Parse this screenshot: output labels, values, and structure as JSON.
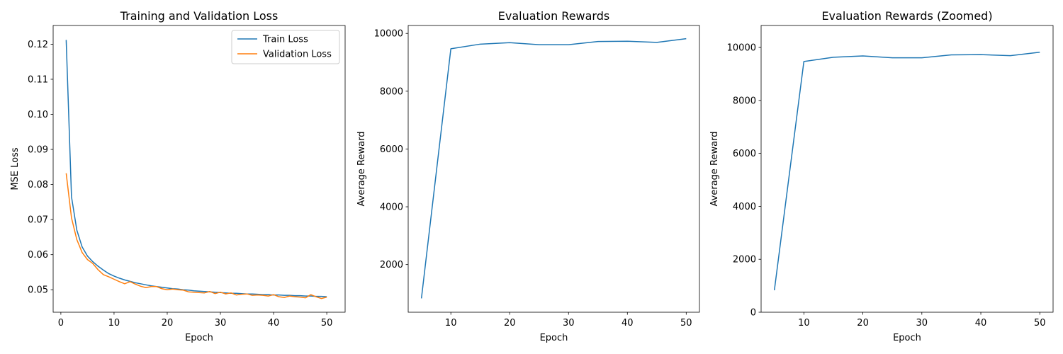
{
  "chart_data": [
    {
      "type": "line",
      "title": "Training and Validation Loss",
      "xlabel": "Epoch",
      "ylabel": "MSE Loss",
      "xlim": [
        -1.45,
        53.45
      ],
      "ylim": [
        0.04359,
        0.12533
      ],
      "xticks": [
        0,
        10,
        20,
        30,
        40,
        50
      ],
      "yticks": [
        0.05,
        0.06,
        0.07,
        0.08,
        0.09,
        0.1,
        0.11,
        0.12
      ],
      "ytick_labels": [
        "0.05",
        "0.06",
        "0.07",
        "0.08",
        "0.09",
        "0.10",
        "0.11",
        "0.12"
      ],
      "grid": false,
      "legend": "top-right",
      "series": [
        {
          "name": "Train Loss",
          "color": "#1f77b4",
          "x": [
            1,
            2,
            3,
            4,
            5,
            6,
            7,
            8,
            9,
            10,
            11,
            12,
            13,
            14,
            15,
            16,
            17,
            18,
            19,
            20,
            21,
            22,
            23,
            24,
            25,
            26,
            27,
            28,
            29,
            30,
            31,
            32,
            33,
            34,
            35,
            36,
            37,
            38,
            39,
            40,
            41,
            42,
            43,
            44,
            45,
            46,
            47,
            48,
            49,
            50
          ],
          "values": [
            0.1212,
            0.0765,
            0.067,
            0.0622,
            0.0596,
            0.058,
            0.0567,
            0.0556,
            0.0546,
            0.0539,
            0.0533,
            0.0528,
            0.0524,
            0.052,
            0.0517,
            0.0514,
            0.0511,
            0.0509,
            0.0507,
            0.0505,
            0.0503,
            0.0502,
            0.05,
            0.0499,
            0.0497,
            0.0496,
            0.0495,
            0.0494,
            0.0493,
            0.0492,
            0.0491,
            0.049,
            0.049,
            0.0489,
            0.0488,
            0.0488,
            0.0487,
            0.0486,
            0.0486,
            0.0485,
            0.0485,
            0.0484,
            0.0484,
            0.0483,
            0.0483,
            0.0482,
            0.0482,
            0.0481,
            0.0481,
            0.048
          ]
        },
        {
          "name": "Validation Loss",
          "color": "#ff7f0e",
          "x": [
            1,
            2,
            3,
            4,
            5,
            6,
            7,
            8,
            9,
            10,
            11,
            12,
            13,
            14,
            15,
            16,
            17,
            18,
            19,
            20,
            21,
            22,
            23,
            24,
            25,
            26,
            27,
            28,
            29,
            30,
            31,
            32,
            33,
            34,
            35,
            36,
            37,
            38,
            39,
            40,
            41,
            42,
            43,
            44,
            45,
            46,
            47,
            48,
            49,
            50
          ],
          "values": [
            0.0832,
            0.0705,
            0.0643,
            0.0606,
            0.0586,
            0.0575,
            0.0557,
            0.0543,
            0.0537,
            0.053,
            0.0523,
            0.0517,
            0.0523,
            0.0516,
            0.051,
            0.0506,
            0.0509,
            0.0509,
            0.0503,
            0.05,
            0.0502,
            0.05,
            0.0499,
            0.0494,
            0.0493,
            0.0492,
            0.0491,
            0.0495,
            0.0489,
            0.0493,
            0.0488,
            0.0491,
            0.0485,
            0.0487,
            0.0488,
            0.0484,
            0.0485,
            0.0484,
            0.0482,
            0.0486,
            0.048,
            0.0478,
            0.0482,
            0.048,
            0.0479,
            0.0477,
            0.0486,
            0.048,
            0.0475,
            0.0479
          ]
        }
      ]
    },
    {
      "type": "line",
      "title": "Evaluation Rewards",
      "xlabel": "Epoch",
      "ylabel": "Average Reward",
      "xlim": [
        2.75,
        52.25
      ],
      "ylim": [
        350,
        10275
      ],
      "xticks": [
        10,
        20,
        30,
        40,
        50
      ],
      "yticks": [
        2000,
        4000,
        6000,
        8000,
        10000
      ],
      "ytick_labels": [
        "2000",
        "4000",
        "6000",
        "8000",
        "10000"
      ],
      "grid": false,
      "series": [
        {
          "color": "#1f77b4",
          "x": [
            5,
            10,
            15,
            20,
            25,
            30,
            35,
            40,
            45,
            50
          ],
          "values": [
            830,
            9470,
            9630,
            9680,
            9610,
            9610,
            9720,
            9730,
            9690,
            9820
          ]
        }
      ]
    },
    {
      "type": "line",
      "title": "Evaluation Rewards (Zoomed)",
      "xlabel": "Epoch",
      "ylabel": "Average Reward",
      "xlim": [
        2.75,
        52.25
      ],
      "ylim": [
        0,
        10830
      ],
      "xticks": [
        10,
        20,
        30,
        40,
        50
      ],
      "yticks": [
        0,
        2000,
        4000,
        6000,
        8000,
        10000
      ],
      "ytick_labels": [
        "0",
        "2000",
        "4000",
        "6000",
        "8000",
        "10000"
      ],
      "grid": false,
      "series": [
        {
          "color": "#1f77b4",
          "x": [
            5,
            10,
            15,
            20,
            25,
            30,
            35,
            40,
            45,
            50
          ],
          "values": [
            830,
            9470,
            9630,
            9680,
            9610,
            9610,
            9720,
            9730,
            9690,
            9820
          ]
        }
      ]
    }
  ]
}
